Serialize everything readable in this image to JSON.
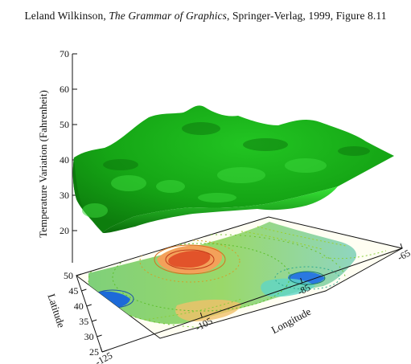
{
  "caption": {
    "author": "Leland Wilkinson, ",
    "title": "The Grammar of Graphics",
    "rest": ", Springer-Verlag, 1999, Figure 8.11"
  },
  "chart_data": {
    "type": "surface",
    "zlabel": "Temperature Variation (Fahrenheit)",
    "zlim": [
      10,
      70
    ],
    "zticks": [
      20,
      30,
      40,
      50,
      60,
      70
    ],
    "xlabel": "Longitude",
    "xticks": [
      -125,
      -105,
      -85,
      -65
    ],
    "ylabel": "Latitude",
    "yticks": [
      25,
      30,
      35,
      40,
      45,
      50
    ],
    "surface_color": "#1aa51a",
    "surface_z_range": [
      25,
      55
    ],
    "base_map": "contour map of the contiguous United States"
  }
}
